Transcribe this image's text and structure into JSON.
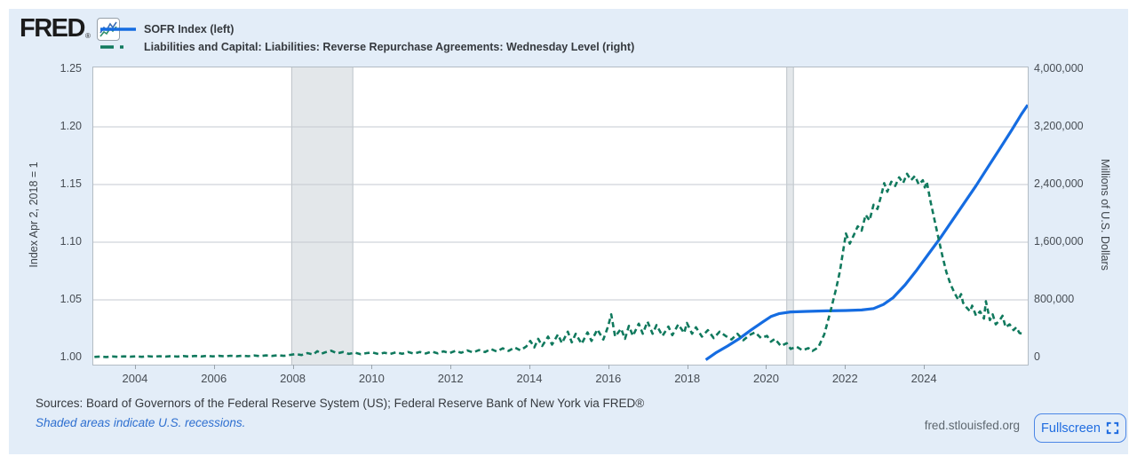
{
  "header": {
    "logo_text": "FRED",
    "logo_reg": "®"
  },
  "icons": {
    "logo_chart": "sparkline",
    "fullscreen": "expand-corners"
  },
  "footer": {
    "sources": "Sources: Board of Governors of the Federal Reserve System (US); Federal Reserve Bank of New York via FRED®",
    "recession_note": "Shaded areas indicate U.S. recessions.",
    "site": "fred.stlouisfed.org",
    "fullscreen_label": "Fullscreen"
  },
  "colors": {
    "panel_bg": "#e3edf8",
    "plot_bg": "#ffffff",
    "plot_border": "#b3bcc4",
    "gridline": "#c4cad0",
    "recession_fill": "#e3e7ea",
    "recession_edge": "#bcc3c9",
    "sofr_blue": "#156ce1",
    "rrp_green": "#10795d"
  },
  "chart_data": {
    "type": "line",
    "x_domain": [
      2002.92,
      2026.61
    ],
    "x_ticks": [
      2004,
      2006,
      2008,
      2010,
      2012,
      2014,
      2016,
      2018,
      2020,
      2022,
      2024
    ],
    "left_axis": {
      "label": "Index Apr 2, 2018 = 1",
      "lim": [
        1.0,
        1.25
      ],
      "tick_values": [
        1.0,
        1.05,
        1.1,
        1.15,
        1.2,
        1.25
      ],
      "tick_labels": [
        "1.00",
        "1.05",
        "1.10",
        "1.15",
        "1.20",
        "1.25"
      ]
    },
    "right_axis": {
      "label": "Millions of U.S. Dollars",
      "lim": [
        0,
        4000000
      ],
      "tick_values": [
        0,
        800000,
        1600000,
        2400000,
        3200000,
        4000000
      ],
      "tick_labels": [
        "0",
        "800,000",
        "1,600,000",
        "2,400,000",
        "3,200,000",
        "4,000,000"
      ]
    },
    "grid": "horizontal-only",
    "legend_position": "top-left",
    "recessions": [
      [
        2007.95,
        2009.5
      ],
      [
        2020.5,
        2020.67
      ]
    ],
    "series": [
      {
        "name": "SOFR Index (left)",
        "axis": "left",
        "style": "solid",
        "color": "#156ce1",
        "points": [
          [
            2018.45,
            0.998
          ],
          [
            2018.7,
            1.004
          ],
          [
            2019.0,
            1.01
          ],
          [
            2019.3,
            1.0165
          ],
          [
            2019.6,
            1.024
          ],
          [
            2019.9,
            1.031
          ],
          [
            2020.1,
            1.0355
          ],
          [
            2020.3,
            1.038
          ],
          [
            2020.6,
            1.0395
          ],
          [
            2021.0,
            1.04
          ],
          [
            2021.5,
            1.0405
          ],
          [
            2022.0,
            1.0408
          ],
          [
            2022.4,
            1.0412
          ],
          [
            2022.7,
            1.0425
          ],
          [
            2022.95,
            1.046
          ],
          [
            2023.2,
            1.052
          ],
          [
            2023.5,
            1.063
          ],
          [
            2023.8,
            1.076
          ],
          [
            2024.1,
            1.09
          ],
          [
            2024.4,
            1.104
          ],
          [
            2024.7,
            1.119
          ],
          [
            2025.0,
            1.134
          ],
          [
            2025.3,
            1.149
          ],
          [
            2025.6,
            1.165
          ],
          [
            2025.9,
            1.181
          ],
          [
            2026.2,
            1.197
          ],
          [
            2026.45,
            1.211
          ],
          [
            2026.61,
            1.219
          ]
        ]
      },
      {
        "name": "Liabilities and Capital: Liabilities: Reverse Repurchase Agreements: Wednesday Level (right)",
        "axis": "right",
        "style": "dashed",
        "color": "#10795d",
        "points": [
          [
            2002.95,
            9000
          ],
          [
            2003.1,
            14000
          ],
          [
            2003.25,
            8000
          ],
          [
            2003.4,
            15000
          ],
          [
            2003.55,
            10000
          ],
          [
            2003.7,
            16000
          ],
          [
            2003.85,
            11000
          ],
          [
            2004.0,
            17000
          ],
          [
            2004.15,
            10000
          ],
          [
            2004.3,
            18000
          ],
          [
            2004.45,
            12000
          ],
          [
            2004.6,
            19000
          ],
          [
            2004.75,
            13000
          ],
          [
            2004.9,
            20000
          ],
          [
            2005.05,
            13000
          ],
          [
            2005.2,
            21000
          ],
          [
            2005.35,
            14000
          ],
          [
            2005.5,
            22000
          ],
          [
            2005.65,
            15000
          ],
          [
            2005.8,
            23000
          ],
          [
            2005.95,
            16000
          ],
          [
            2006.1,
            24000
          ],
          [
            2006.25,
            16000
          ],
          [
            2006.4,
            25000
          ],
          [
            2006.55,
            17000
          ],
          [
            2006.7,
            26000
          ],
          [
            2006.85,
            18000
          ],
          [
            2007.0,
            28000
          ],
          [
            2007.15,
            20000
          ],
          [
            2007.3,
            30000
          ],
          [
            2007.45,
            22000
          ],
          [
            2007.6,
            32000
          ],
          [
            2007.75,
            24000
          ],
          [
            2007.9,
            36000
          ],
          [
            2008.05,
            48000
          ],
          [
            2008.2,
            34000
          ],
          [
            2008.35,
            62000
          ],
          [
            2008.5,
            42000
          ],
          [
            2008.6,
            88000
          ],
          [
            2008.7,
            52000
          ],
          [
            2008.8,
            72000
          ],
          [
            2008.95,
            95000
          ],
          [
            2009.1,
            58000
          ],
          [
            2009.25,
            76000
          ],
          [
            2009.4,
            50000
          ],
          [
            2009.55,
            68000
          ],
          [
            2009.7,
            46000
          ],
          [
            2009.85,
            62000
          ],
          [
            2010.0,
            70000
          ],
          [
            2010.15,
            48000
          ],
          [
            2010.3,
            66000
          ],
          [
            2010.45,
            50000
          ],
          [
            2010.6,
            72000
          ],
          [
            2010.75,
            52000
          ],
          [
            2010.9,
            76000
          ],
          [
            2011.05,
            54000
          ],
          [
            2011.2,
            78000
          ],
          [
            2011.35,
            56000
          ],
          [
            2011.5,
            82000
          ],
          [
            2011.65,
            58000
          ],
          [
            2011.8,
            86000
          ],
          [
            2011.95,
            62000
          ],
          [
            2012.1,
            92000
          ],
          [
            2012.25,
            66000
          ],
          [
            2012.4,
            98000
          ],
          [
            2012.55,
            70000
          ],
          [
            2012.7,
            104000
          ],
          [
            2012.85,
            76000
          ],
          [
            2013.0,
            118000
          ],
          [
            2013.15,
            84000
          ],
          [
            2013.3,
            128000
          ],
          [
            2013.45,
            92000
          ],
          [
            2013.6,
            140000
          ],
          [
            2013.75,
            100000
          ],
          [
            2013.9,
            155000
          ],
          [
            2014.0,
            230000
          ],
          [
            2014.1,
            140000
          ],
          [
            2014.2,
            260000
          ],
          [
            2014.3,
            160000
          ],
          [
            2014.45,
            290000
          ],
          [
            2014.55,
            180000
          ],
          [
            2014.7,
            320000
          ],
          [
            2014.8,
            200000
          ],
          [
            2014.95,
            360000
          ],
          [
            2015.05,
            210000
          ],
          [
            2015.15,
            330000
          ],
          [
            2015.3,
            190000
          ],
          [
            2015.45,
            350000
          ],
          [
            2015.55,
            230000
          ],
          [
            2015.7,
            390000
          ],
          [
            2015.85,
            250000
          ],
          [
            2015.97,
            430000
          ],
          [
            2016.05,
            600000
          ],
          [
            2016.15,
            290000
          ],
          [
            2016.3,
            400000
          ],
          [
            2016.4,
            260000
          ],
          [
            2016.5,
            440000
          ],
          [
            2016.6,
            300000
          ],
          [
            2016.75,
            470000
          ],
          [
            2016.85,
            330000
          ],
          [
            2016.97,
            500000
          ],
          [
            2017.1,
            330000
          ],
          [
            2017.2,
            450000
          ],
          [
            2017.35,
            300000
          ],
          [
            2017.5,
            430000
          ],
          [
            2017.6,
            310000
          ],
          [
            2017.75,
            460000
          ],
          [
            2017.9,
            340000
          ],
          [
            2017.97,
            480000
          ],
          [
            2018.1,
            330000
          ],
          [
            2018.2,
            420000
          ],
          [
            2018.35,
            290000
          ],
          [
            2018.5,
            380000
          ],
          [
            2018.65,
            270000
          ],
          [
            2018.8,
            360000
          ],
          [
            2018.95,
            300000
          ],
          [
            2019.1,
            250000
          ],
          [
            2019.25,
            330000
          ],
          [
            2019.4,
            240000
          ],
          [
            2019.55,
            310000
          ],
          [
            2019.7,
            350000
          ],
          [
            2019.85,
            270000
          ],
          [
            2020.0,
            300000
          ],
          [
            2020.1,
            220000
          ],
          [
            2020.2,
            260000
          ],
          [
            2020.35,
            160000
          ],
          [
            2020.5,
            200000
          ],
          [
            2020.6,
            120000
          ],
          [
            2020.75,
            150000
          ],
          [
            2020.9,
            100000
          ],
          [
            2021.05,
            130000
          ],
          [
            2021.15,
            90000
          ],
          [
            2021.3,
            140000
          ],
          [
            2021.45,
            320000
          ],
          [
            2021.6,
            620000
          ],
          [
            2021.75,
            950000
          ],
          [
            2021.85,
            1200000
          ],
          [
            2021.95,
            1550000
          ],
          [
            2022.0,
            1720000
          ],
          [
            2022.1,
            1580000
          ],
          [
            2022.2,
            1700000
          ],
          [
            2022.3,
            1820000
          ],
          [
            2022.4,
            1760000
          ],
          [
            2022.5,
            1980000
          ],
          [
            2022.6,
            1900000
          ],
          [
            2022.7,
            2120000
          ],
          [
            2022.8,
            2060000
          ],
          [
            2022.9,
            2260000
          ],
          [
            2022.97,
            2420000
          ],
          [
            2023.05,
            2300000
          ],
          [
            2023.15,
            2440000
          ],
          [
            2023.25,
            2380000
          ],
          [
            2023.35,
            2500000
          ],
          [
            2023.45,
            2420000
          ],
          [
            2023.55,
            2550000
          ],
          [
            2023.65,
            2460000
          ],
          [
            2023.75,
            2520000
          ],
          [
            2023.85,
            2400000
          ],
          [
            2023.95,
            2460000
          ],
          [
            2024.0,
            2360000
          ],
          [
            2024.05,
            2440000
          ],
          [
            2024.15,
            2150000
          ],
          [
            2024.25,
            1900000
          ],
          [
            2024.35,
            1650000
          ],
          [
            2024.45,
            1400000
          ],
          [
            2024.55,
            1180000
          ],
          [
            2024.65,
            1020000
          ],
          [
            2024.75,
            900000
          ],
          [
            2024.85,
            800000
          ],
          [
            2024.92,
            880000
          ],
          [
            2024.97,
            760000
          ],
          [
            2025.05,
            700000
          ],
          [
            2025.15,
            640000
          ],
          [
            2025.2,
            720000
          ],
          [
            2025.3,
            580000
          ],
          [
            2025.4,
            640000
          ],
          [
            2025.5,
            540000
          ],
          [
            2025.55,
            780000
          ],
          [
            2025.65,
            520000
          ],
          [
            2025.72,
            600000
          ],
          [
            2025.8,
            460000
          ],
          [
            2025.9,
            520000
          ],
          [
            2025.97,
            580000
          ],
          [
            2026.05,
            420000
          ],
          [
            2026.15,
            460000
          ],
          [
            2026.25,
            380000
          ],
          [
            2026.32,
            420000
          ],
          [
            2026.4,
            340000
          ],
          [
            2026.48,
            330000
          ]
        ]
      }
    ]
  }
}
